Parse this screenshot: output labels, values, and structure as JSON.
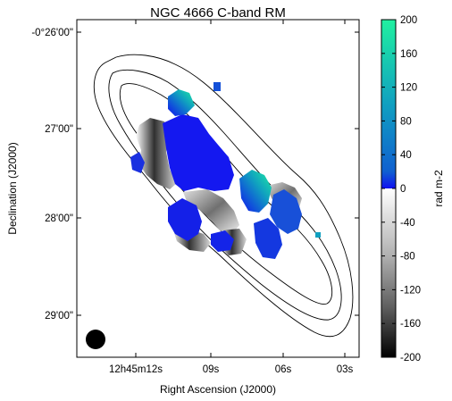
{
  "chart_data": {
    "type": "heatmap",
    "title": "NGC 4666    C-band    RM",
    "xlabel": "Right Ascension (J2000)",
    "ylabel": "Declination (J2000)",
    "x_ticks": [
      "12h45m12s",
      "09s",
      "06s",
      "03s"
    ],
    "y_ticks": [
      "-0°26'00\"",
      "27'00\"",
      "28'00\"",
      "29'00\""
    ],
    "colorbar": {
      "label": "rad m-2",
      "range": [
        -200,
        200
      ],
      "ticks": [
        "200",
        "160",
        "120",
        "80",
        "40",
        "0",
        "-40",
        "-80",
        "-120",
        "-160",
        "-200"
      ],
      "positive_colors": [
        "#1010f0",
        "#1060d0",
        "#10a0c0",
        "#20f0a0"
      ],
      "negative_colors": [
        "#ffffff",
        "#b0b0b0",
        "#606060",
        "#000000"
      ]
    },
    "contours": 3,
    "beam": "filled circle (lower-left)"
  }
}
